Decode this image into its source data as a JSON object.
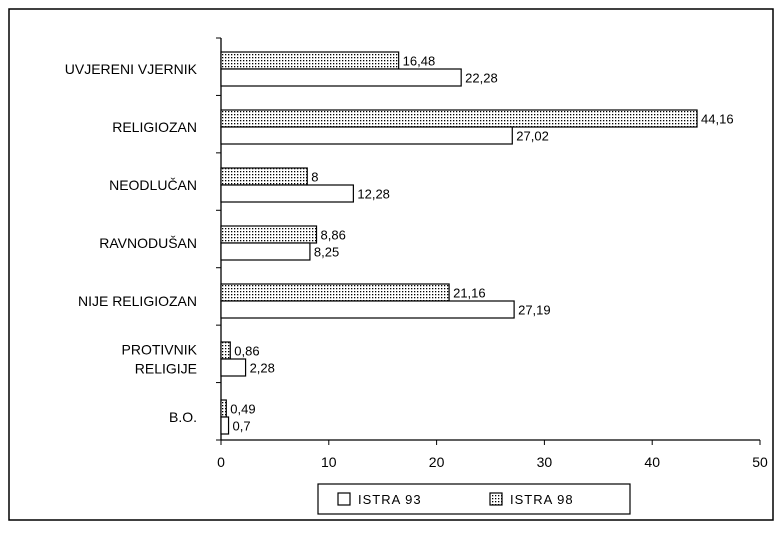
{
  "chart_data": {
    "type": "bar",
    "orientation": "horizontal",
    "categories": [
      [
        "UVJERENI VJERNIK"
      ],
      [
        "RELIGIOZAN"
      ],
      [
        "NEODLUČAN"
      ],
      [
        "RAVNODUŠAN"
      ],
      [
        "NIJE RELIGIOZAN"
      ],
      [
        "PROTIVNIK",
        "RELIGIJE"
      ],
      [
        "B.O."
      ]
    ],
    "series": [
      {
        "name": "ISTRA 98",
        "fill": "dotted",
        "values": [
          16.48,
          44.16,
          8,
          8.86,
          21.16,
          0.86,
          0.49
        ],
        "labels": [
          "16,48",
          "44,16",
          "8",
          "8,86",
          "21,16",
          "0,86",
          "0,49"
        ]
      },
      {
        "name": "ISTRA 93",
        "fill": "white",
        "values": [
          22.28,
          27.02,
          12.28,
          8.25,
          27.19,
          2.28,
          0.7
        ],
        "labels": [
          "22,28",
          "27,02",
          "12,28",
          "8,25",
          "27,19",
          "2,28",
          "0,7"
        ]
      }
    ],
    "xlim": [
      0,
      50
    ],
    "xticks": [
      0,
      10,
      20,
      30,
      40,
      50
    ],
    "xtick_labels": [
      "0",
      "10",
      "20",
      "30",
      "40",
      "50"
    ],
    "legend": {
      "placement": "bottom",
      "items": [
        {
          "label": "ISTRA 93",
          "fill": "white"
        },
        {
          "label": "ISTRA 98",
          "fill": "dotted"
        }
      ]
    },
    "colors": {
      "line": "#000000",
      "background": "#ffffff"
    }
  }
}
